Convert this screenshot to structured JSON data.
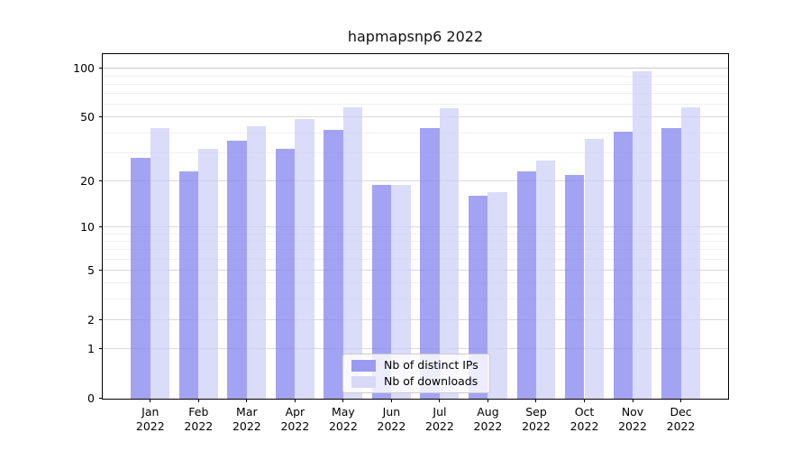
{
  "figure": {
    "title": "hapmapsnp6 2022"
  },
  "chart_data": {
    "type": "bar",
    "title": "hapmapsnp6 2022",
    "categories": [
      "Jan 2022",
      "Feb 2022",
      "Mar 2022",
      "Apr 2022",
      "May 2022",
      "Jun 2022",
      "Jul 2022",
      "Aug 2022",
      "Sep 2022",
      "Oct 2022",
      "Nov 2022",
      "Dec 2022"
    ],
    "series": [
      {
        "name": "Nb of distinct IPs",
        "color": "#9a9aef",
        "values": [
          28,
          23,
          36,
          32,
          42,
          19,
          43,
          16,
          23,
          22,
          41,
          43
        ]
      },
      {
        "name": "Nb of downloads",
        "color": "#d8d8f7",
        "values": [
          43,
          32,
          44,
          49,
          58,
          19,
          57,
          17,
          27,
          37,
          96,
          58
        ]
      }
    ],
    "xlabel": "",
    "ylabel": "",
    "yscale": "log1p",
    "ylim": [
      0,
      123
    ],
    "yticks_major": [
      0,
      1,
      2,
      5,
      10,
      20,
      50,
      100
    ],
    "yticks_minor": [
      3,
      4,
      6,
      7,
      8,
      9,
      30,
      40,
      60,
      70,
      80,
      90
    ],
    "grid": true,
    "legend_position": "lower center"
  },
  "colors": {
    "bar_distinct_ips": "rgba(128,128,240,0.72)",
    "bar_downloads": "rgba(205,205,248,0.72)",
    "legend_swatch_distinct_ips": "#9a9aef",
    "legend_swatch_downloads": "#d8d8f7",
    "grid_major": "#d9d9d9",
    "grid_major_top": "#c9c9c9",
    "grid_minor": "#f0f0f0",
    "axis": "#000000",
    "background": "#ffffff"
  }
}
